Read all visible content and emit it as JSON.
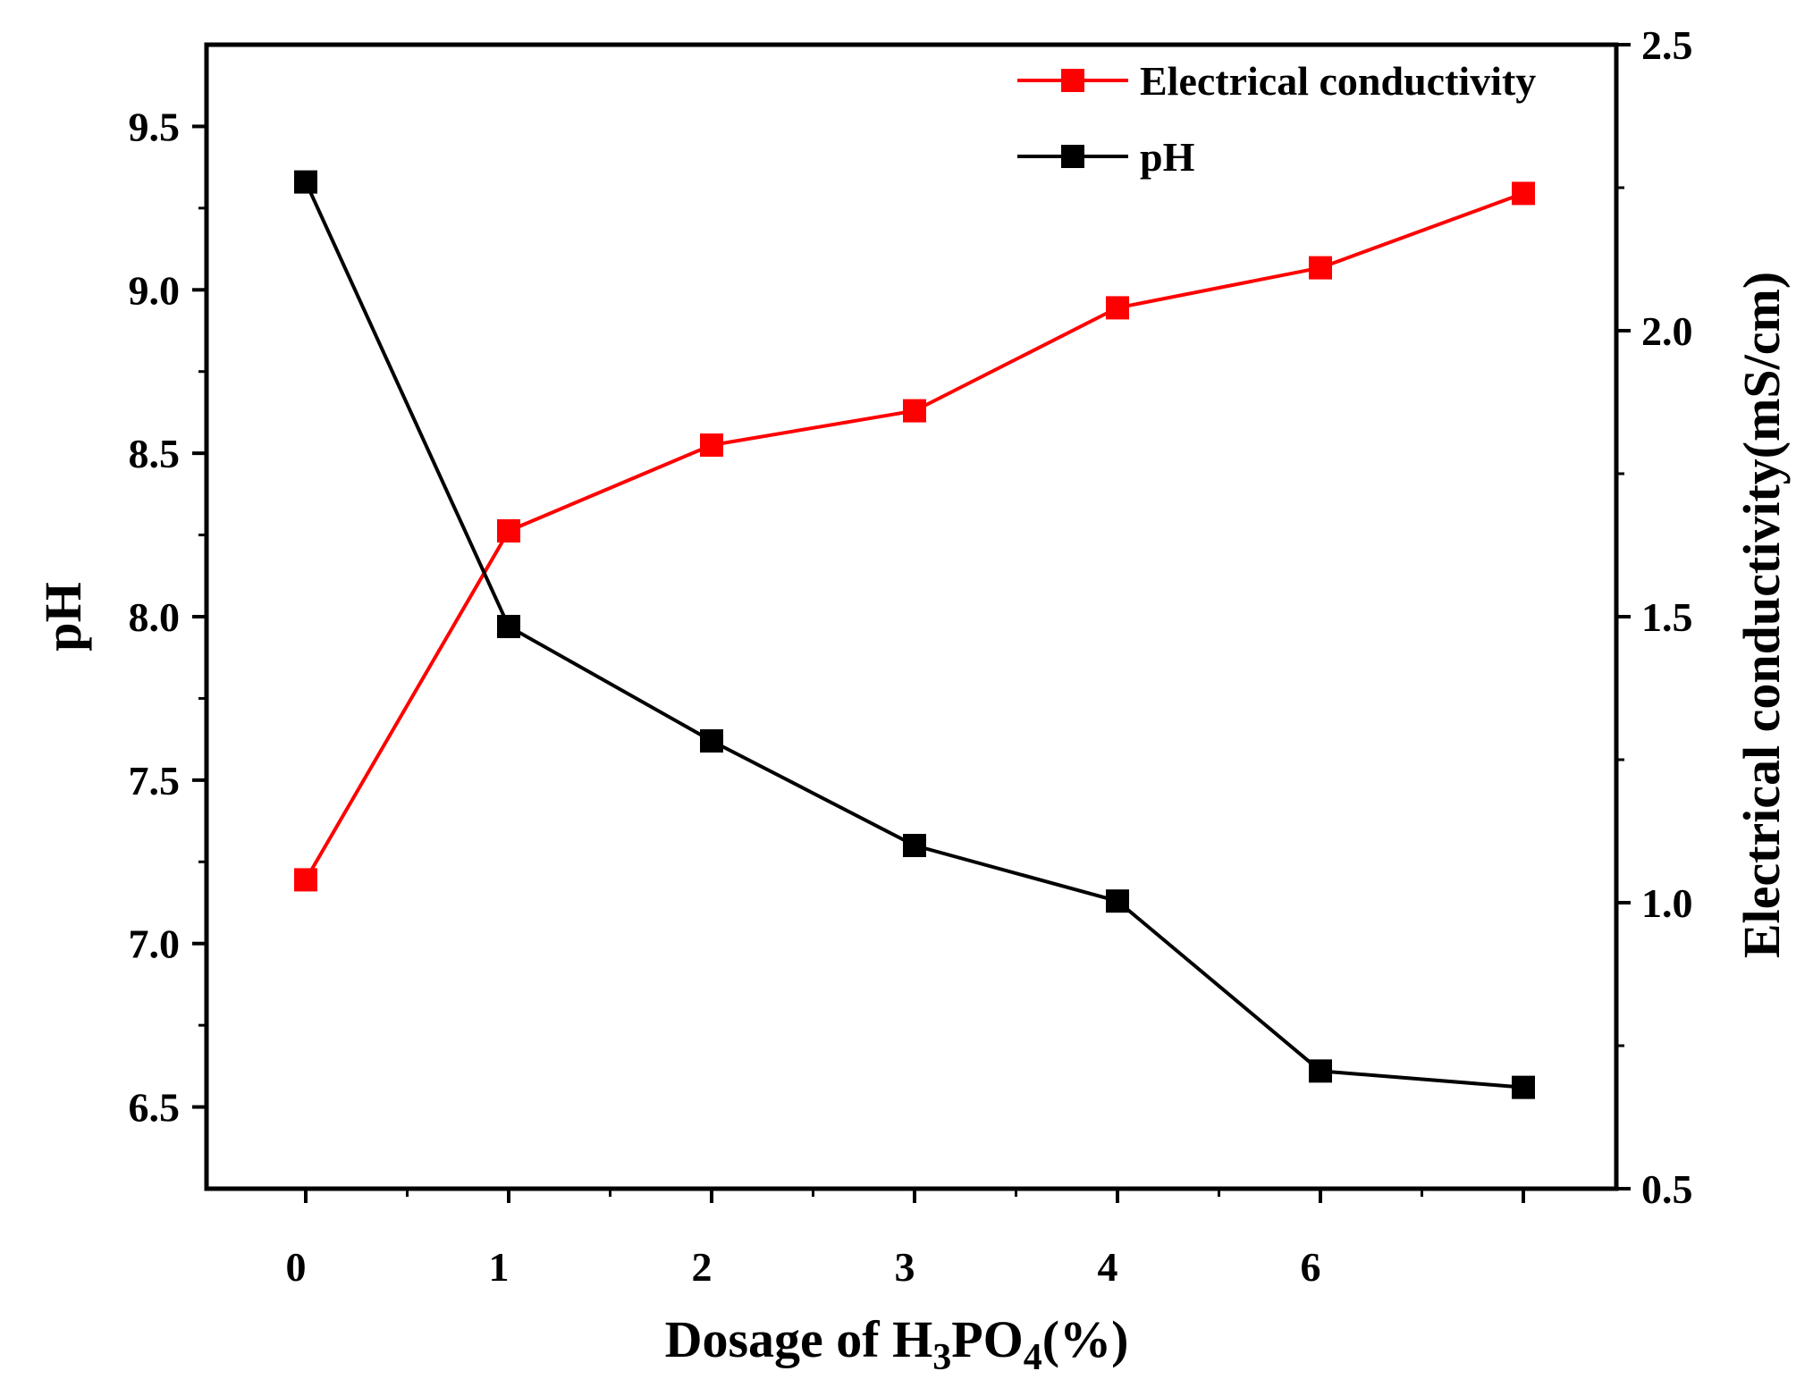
{
  "chart_data": {
    "type": "line",
    "title": "",
    "categories": [
      "0",
      "1",
      "2",
      "3",
      "4",
      "6",
      ""
    ],
    "xlabel": {
      "prefix": "Dosage of H",
      "sub1": "3",
      "mid": "PO",
      "sub2": "4",
      "suffix": "(%)"
    },
    "ylabel_left": "pH",
    "ylabel_right": "Electrical conductivity(mS/cm)",
    "ylim_left": [
      6.25,
      9.75
    ],
    "ylim_right": [
      0.5,
      2.5
    ],
    "left_ticks": [
      "6.5",
      "7.0",
      "7.5",
      "8.0",
      "8.5",
      "9.0",
      "9.5"
    ],
    "right_ticks": [
      "0.5",
      "1.0",
      "1.5",
      "2.0",
      "2.5"
    ],
    "legend_position": "top-right",
    "series": [
      {
        "name": "Electrical conductivity",
        "axis": "right",
        "color": "#ff0000",
        "values": [
          1.04,
          1.65,
          1.8,
          1.86,
          2.04,
          2.11,
          2.24
        ]
      },
      {
        "name": "pH",
        "axis": "left",
        "color": "#000000",
        "values": [
          9.33,
          7.97,
          7.62,
          7.3,
          7.13,
          6.61,
          6.56
        ]
      }
    ]
  }
}
